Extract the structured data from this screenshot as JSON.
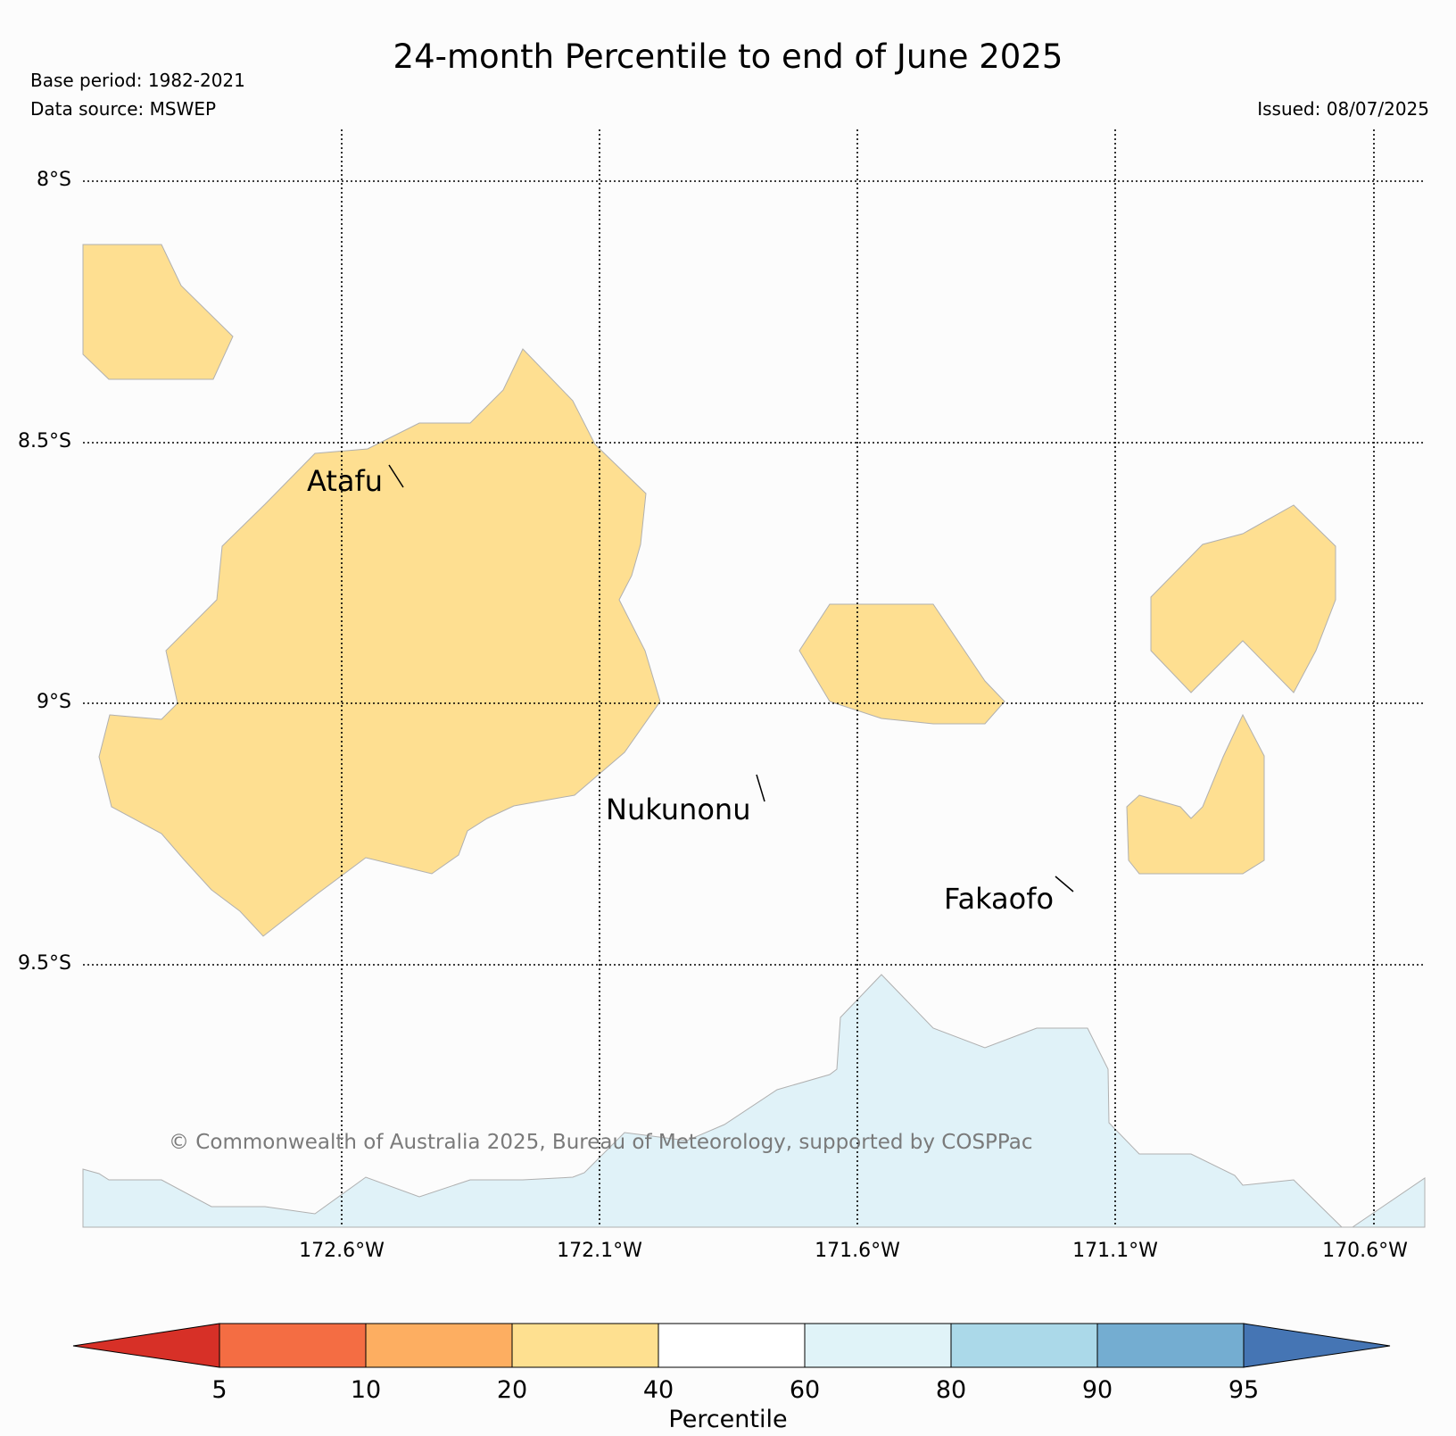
{
  "title": "24-month Percentile to end of June 2025",
  "base_period": "Base period: 1982-2021",
  "data_source": "Data source: MSWEP",
  "issued": "Issued: 08/07/2025",
  "copyright": "© Commonwealth of Australia 2025, Bureau of Meteorology, supported by COSPPac",
  "latitude_labels": [
    "8°S",
    "8.5°S",
    "9°S",
    "9.5°S"
  ],
  "longitude_labels": [
    "172.6°W",
    "172.1°W",
    "171.6°W",
    "171.1°W",
    "170.6°W"
  ],
  "places": [
    "Atafu",
    "Nukunonu",
    "Fakaofo"
  ],
  "colorbar": {
    "label": "Percentile",
    "ticks": [
      "5",
      "10",
      "20",
      "40",
      "60",
      "80",
      "90",
      "95"
    ],
    "colors": [
      "#d73027",
      "#f46d43",
      "#fdae61",
      "#fee090",
      "#ffffff",
      "#e0f3f8",
      "#abd9e9",
      "#74add1",
      "#4575b4"
    ]
  },
  "fill_colors": {
    "dry_20_40": "#fedf91",
    "wet_60_80": "#e0f2f8"
  }
}
